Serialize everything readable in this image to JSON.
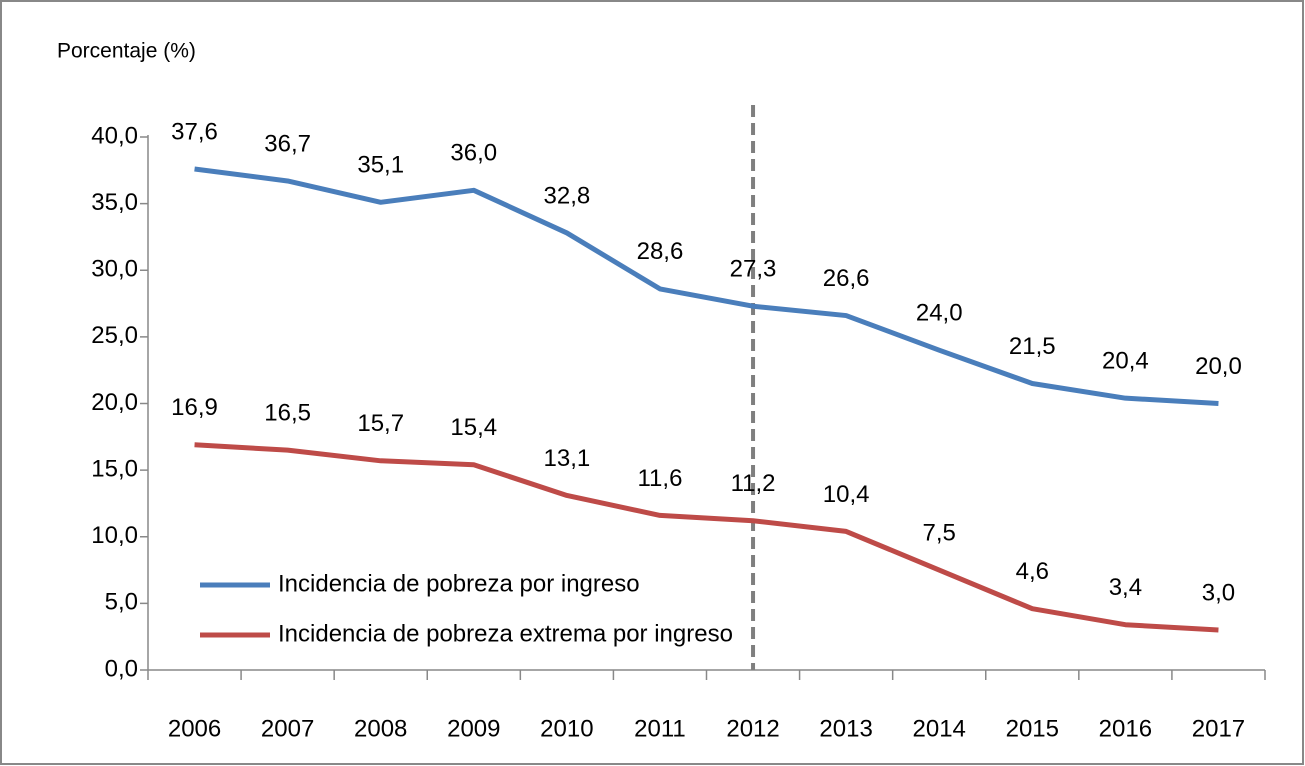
{
  "chart_data": {
    "type": "line",
    "ylabel": "Porcentaje (%)",
    "categories": [
      "2006",
      "2007",
      "2008",
      "2009",
      "2010",
      "2011",
      "2012",
      "2013",
      "2014",
      "2015",
      "2016",
      "2017"
    ],
    "series": [
      {
        "name": "Incidencia de pobreza por ingreso",
        "color": "#4a7ebb",
        "values": [
          37.6,
          36.7,
          35.1,
          36.0,
          32.8,
          28.6,
          27.3,
          26.6,
          24.0,
          21.5,
          20.4,
          20.0
        ],
        "value_labels": [
          "37,6",
          "36,7",
          "35,1",
          "36,0",
          "32,8",
          "28,6",
          "27,3",
          "26,6",
          "24,0",
          "21,5",
          "20,4",
          "20,0"
        ]
      },
      {
        "name": "Incidencia de pobreza extrema por ingreso",
        "color": "#be4b48",
        "values": [
          16.9,
          16.5,
          15.7,
          15.4,
          13.1,
          11.6,
          11.2,
          10.4,
          7.5,
          4.6,
          3.4,
          3.0
        ],
        "value_labels": [
          "16,9",
          "16,5",
          "15,7",
          "15,4",
          "13,1",
          "11,6",
          "11,2",
          "10,4",
          "7,5",
          "4,6",
          "3,4",
          "3,0"
        ]
      }
    ],
    "ylim": [
      0,
      40
    ],
    "yticks": [
      {
        "value": 0,
        "label": "0,0"
      },
      {
        "value": 5,
        "label": "5,0"
      },
      {
        "value": 10,
        "label": "10,0"
      },
      {
        "value": 15,
        "label": "15,0"
      },
      {
        "value": 20,
        "label": "20,0"
      },
      {
        "value": 25,
        "label": "25,0"
      },
      {
        "value": 30,
        "label": "30,0"
      },
      {
        "value": 35,
        "label": "35,0"
      },
      {
        "value": 40,
        "label": "40,0"
      }
    ],
    "legend": "lower left"
  }
}
